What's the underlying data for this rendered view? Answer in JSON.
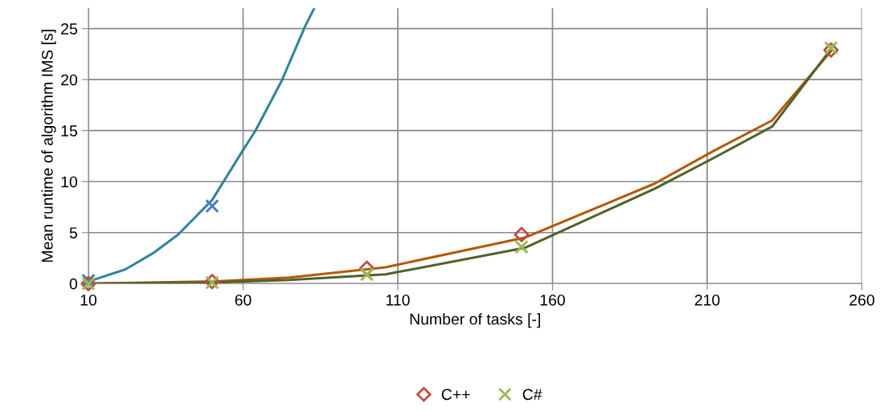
{
  "chart_data": {
    "type": "scatter",
    "xlabel": "Number of tasks [-]",
    "ylabel": "Mean runtime of algorithm IMS [s]",
    "xlim": [
      10,
      260
    ],
    "xticks": [
      10,
      60,
      110,
      160,
      210,
      260
    ],
    "ylim": [
      0,
      27
    ],
    "yticks": [
      0,
      5,
      10,
      15,
      20,
      25
    ],
    "grid": true,
    "legend": "bottom",
    "series": [
      {
        "type": "line",
        "color": "#31859c",
        "marker": "none",
        "x": [
          10,
          22,
          31,
          39,
          50,
          60,
          64,
          72.5,
          80,
          83
        ],
        "values": [
          0.2,
          1.4,
          3.0,
          4.8,
          8.2,
          13.1,
          15.0,
          19.9,
          25.2,
          27
        ]
      },
      {
        "type": "line",
        "color": "#b65708",
        "marker": "none",
        "x": [
          10,
          50,
          75,
          106,
          151,
          193,
          212,
          231,
          250
        ],
        "values": [
          0,
          0.2,
          0.6,
          1.6,
          4.5,
          9.8,
          13.0,
          16.0,
          22.8
        ]
      },
      {
        "type": "line",
        "color": "#4f6228",
        "marker": "none",
        "x": [
          10,
          50,
          75,
          106,
          151,
          193,
          212,
          231,
          250
        ],
        "values": [
          0,
          0.1,
          0.35,
          0.9,
          3.5,
          9.3,
          12.3,
          15.4,
          23.0
        ]
      },
      {
        "color": "#4a7ebb",
        "marker": "cross",
        "x": [
          10,
          50
        ],
        "values": [
          0.3,
          7.6
        ]
      },
      {
        "name": "C++",
        "color": "#be4b48",
        "marker": "diamond",
        "x": [
          10,
          50,
          100,
          150,
          250
        ],
        "values": [
          0,
          0.2,
          1.5,
          4.8,
          22.9
        ]
      },
      {
        "name": "C#",
        "color": "#98b954",
        "marker": "cross",
        "x": [
          10,
          50,
          100,
          150,
          250
        ],
        "values": [
          0,
          0.1,
          0.9,
          3.6,
          23.1
        ]
      }
    ]
  }
}
